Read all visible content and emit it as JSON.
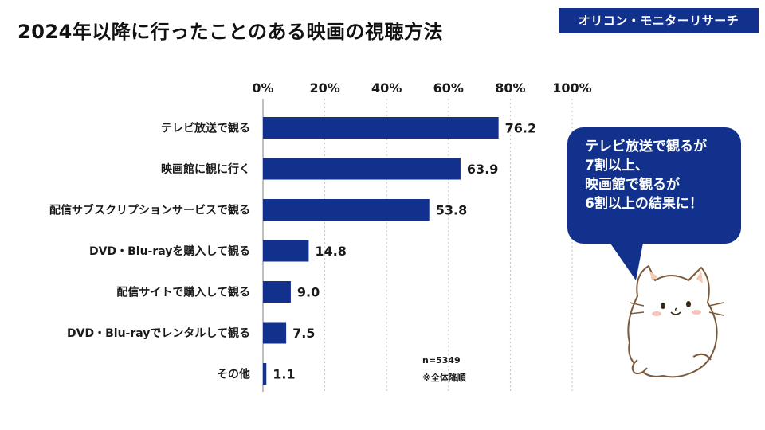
{
  "header": {
    "title": "2024年以降に行ったことのある映画の視聴方法",
    "brand": "オリコン・モニターリサーチ"
  },
  "notes": {
    "sample": "n=5349",
    "sort": "※全体降順"
  },
  "callout": {
    "lines": [
      "テレビ放送で観るが",
      "7割以上、",
      "映画館で観るが",
      "6割以上の結果に！"
    ]
  },
  "colors": {
    "bar": "#11318c",
    "callout": "#11318c",
    "brand_badge": "#11318c"
  },
  "chart_data": {
    "type": "bar",
    "orientation": "horizontal",
    "title": "2024年以降に行ったことのある映画の視聴方法",
    "categories": [
      "テレビ放送で観る",
      "映画館に観に行く",
      "配信サブスクリプションサービスで観る",
      "DVD・Blu-rayを購入して観る",
      "配信サイトで購入して観る",
      "DVD・Blu-rayでレンタルして観る",
      "その他"
    ],
    "values": [
      76.2,
      63.9,
      53.8,
      14.8,
      9.0,
      7.5,
      1.1
    ],
    "value_labels": [
      "76.2",
      "63.9",
      "53.8",
      "14.8",
      "9.0",
      "7.5",
      "1.1"
    ],
    "xlim": [
      0,
      100
    ],
    "xticks": [
      "0%",
      "20%",
      "40%",
      "60%",
      "80%",
      "100%"
    ],
    "xtick_values": [
      0,
      20,
      40,
      60,
      80,
      100
    ],
    "axis_position": "top",
    "grid": true
  }
}
